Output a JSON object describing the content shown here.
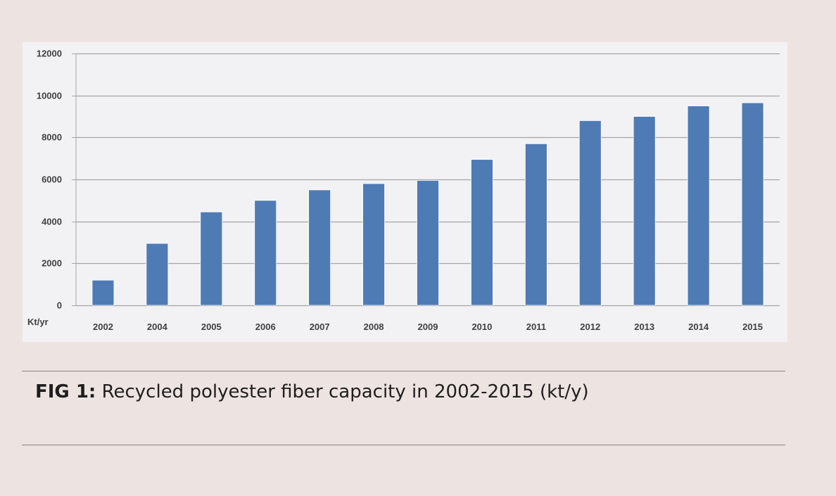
{
  "chart_data": {
    "type": "bar",
    "categories": [
      "2002",
      "2004",
      "2005",
      "2006",
      "2007",
      "2008",
      "2009",
      "2010",
      "2011",
      "2012",
      "2013",
      "2014",
      "2015"
    ],
    "values": [
      1200,
      2950,
      4450,
      5000,
      5500,
      5800,
      5950,
      6950,
      7700,
      8800,
      9000,
      9500,
      9650
    ],
    "ylabel": "Kt/yr",
    "ylim": [
      0,
      12000
    ],
    "yticks": [
      0,
      2000,
      4000,
      6000,
      8000,
      10000,
      12000
    ],
    "grid": true,
    "bar_color": "#4f7bb5",
    "grid_color": "#a6a6a6"
  },
  "caption": {
    "figure_label": "FIG 1:",
    "text": "Recycled polyester fiber capacity in 2002-2015 (kt/y)"
  },
  "colors": {
    "background": "#ede4e1",
    "panel": "#f2f2f4"
  }
}
